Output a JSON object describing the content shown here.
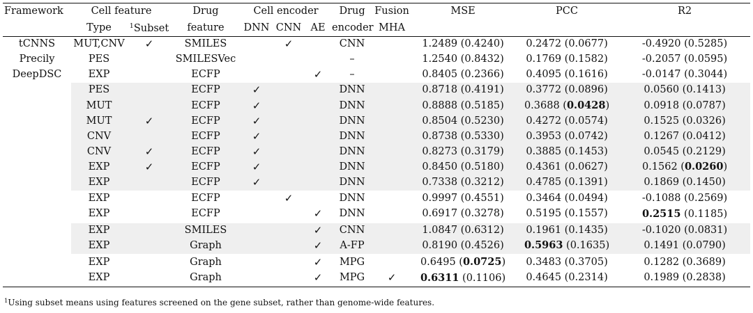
{
  "header": {
    "framework": "Framework",
    "cell_feature": "Cell feature",
    "drug_top": "Drug",
    "cell_encoder": "Cell encoder",
    "drug_encoder_top": "Drug",
    "fusion_top": "Fusion",
    "mse": "MSE",
    "pcc": "PCC",
    "r2": "R2",
    "type": "Type",
    "subset_sup": "1",
    "subset": "Subset",
    "drug_feature": "feature",
    "dnn": "DNN",
    "cnn": "CNN",
    "ae": "AE",
    "drug_encoder": "encoder",
    "mha": "MHA"
  },
  "check_glyph": "✓",
  "rows": [
    {
      "framework": "tCNNS",
      "type": "MUT,CNV",
      "subset": "✓",
      "drug": "SMILES",
      "dnn": "",
      "cnn": "✓",
      "ae": "",
      "enc": "CNN",
      "mha": "",
      "mse": "1.2489 (0.4240)",
      "pcc": "0.2472 (0.0677)",
      "r2": "-0.4920 (0.5285)"
    },
    {
      "framework": "Precily",
      "type": "PES",
      "subset": "",
      "drug": "SMILESVec",
      "dnn": "",
      "cnn": "",
      "ae": "",
      "enc": "–",
      "mha": "",
      "mse": "1.2540 (0.8432)",
      "pcc": "0.1769 (0.1582)",
      "r2": "-0.2057 (0.0595)"
    },
    {
      "framework": "DeepDSC",
      "type": "EXP",
      "subset": "",
      "drug": "ECFP",
      "dnn": "",
      "cnn": "",
      "ae": "✓",
      "enc": "–",
      "mha": "",
      "mse": "0.8405 (0.2366)",
      "pcc": "0.4095 (0.1616)",
      "r2": "-0.0147 (0.3044)"
    },
    {
      "framework": "",
      "type": "PES",
      "subset": "",
      "drug": "ECFP",
      "dnn": "✓",
      "cnn": "",
      "ae": "",
      "enc": "DNN",
      "mha": "",
      "mse": "0.8718 (0.4191)",
      "pcc": "0.3772 (0.0896)",
      "r2": "0.0560 (0.1413)"
    },
    {
      "framework": "",
      "type": "MUT",
      "subset": "",
      "drug": "ECFP",
      "dnn": "✓",
      "cnn": "",
      "ae": "",
      "enc": "DNN",
      "mha": "",
      "mse": "0.8888 (0.5185)",
      "pcc_a": "0.3688 (",
      "pcc_b": "0.0428",
      "pcc_c": ")",
      "r2": "0.0918 (0.0787)"
    },
    {
      "framework": "",
      "type": "MUT",
      "subset": "✓",
      "drug": "ECFP",
      "dnn": "✓",
      "cnn": "",
      "ae": "",
      "enc": "DNN",
      "mha": "",
      "mse": "0.8504 (0.5230)",
      "pcc": "0.4272 (0.0574)",
      "r2": "0.1525 (0.0326)"
    },
    {
      "framework": "",
      "type": "CNV",
      "subset": "",
      "drug": "ECFP",
      "dnn": "✓",
      "cnn": "",
      "ae": "",
      "enc": "DNN",
      "mha": "",
      "mse": "0.8738 (0.5330)",
      "pcc": "0.3953 (0.0742)",
      "r2": "0.1267 (0.0412)"
    },
    {
      "framework": "",
      "type": "CNV",
      "subset": "✓",
      "drug": "ECFP",
      "dnn": "✓",
      "cnn": "",
      "ae": "",
      "enc": "DNN",
      "mha": "",
      "mse": "0.8273 (0.3179)",
      "pcc": "0.3885 (0.1453)",
      "r2": "0.0545 (0.2129)"
    },
    {
      "framework": "",
      "type": "EXP",
      "subset": "✓",
      "drug": "ECFP",
      "dnn": "✓",
      "cnn": "",
      "ae": "",
      "enc": "DNN",
      "mha": "",
      "mse": "0.8450 (0.5180)",
      "pcc": "0.4361 (0.0627)",
      "r2_a": "0.1562 (",
      "r2_b": "0.0260",
      "r2_c": ")"
    },
    {
      "framework": "",
      "type": "EXP",
      "subset": "",
      "drug": "ECFP",
      "dnn": "✓",
      "cnn": "",
      "ae": "",
      "enc": "DNN",
      "mha": "",
      "mse": "0.7338 (0.3212)",
      "pcc": "0.4785 (0.1391)",
      "r2": "0.1869 (0.1450)"
    },
    {
      "framework": "",
      "type": "EXP",
      "subset": "",
      "drug": "ECFP",
      "dnn": "",
      "cnn": "✓",
      "ae": "",
      "enc": "DNN",
      "mha": "",
      "mse": "0.9997 (0.4551)",
      "pcc": "0.3464 (0.0494)",
      "r2": "-0.1088 (0.2569)"
    },
    {
      "framework": "",
      "type": "EXP",
      "subset": "",
      "drug": "ECFP",
      "dnn": "",
      "cnn": "",
      "ae": "✓",
      "enc": "DNN",
      "mha": "",
      "mse": "0.6917 (0.3278)",
      "pcc": "0.5195 (0.1557)",
      "r2_a": "",
      "r2_b": "0.2515",
      "r2_c": " (0.1185)"
    },
    {
      "framework": "",
      "type": "EXP",
      "subset": "",
      "drug": "SMILES",
      "dnn": "",
      "cnn": "",
      "ae": "✓",
      "enc": "CNN",
      "mha": "",
      "mse": "1.0847 (0.6312)",
      "pcc": "0.1961 (0.1435)",
      "r2": "-0.1020 (0.0831)"
    },
    {
      "framework": "",
      "type": "EXP",
      "subset": "",
      "drug": "Graph",
      "dnn": "",
      "cnn": "",
      "ae": "✓",
      "enc": "A-FP",
      "mha": "",
      "mse": "0.8190 (0.4526)",
      "pcc_a": "",
      "pcc_b": "0.5963",
      "pcc_c": " (0.1635)",
      "r2": "0.1491 (0.0790)"
    },
    {
      "framework": "",
      "type": "EXP",
      "subset": "",
      "drug": "Graph",
      "dnn": "",
      "cnn": "",
      "ae": "✓",
      "enc": "MPG",
      "mha": "",
      "mse_a": "0.6495 (",
      "mse_b": "0.0725",
      "mse_c": ")",
      "pcc": "0.3483 (0.3705)",
      "r2": "0.1282 (0.3689)"
    },
    {
      "framework": "",
      "type": "EXP",
      "subset": "",
      "drug": "Graph",
      "dnn": "",
      "cnn": "",
      "ae": "✓",
      "enc": "MPG",
      "mha": "✓",
      "mse_a": "",
      "mse_b": "0.6311",
      "mse_c": " (0.1106)",
      "pcc": "0.4645 (0.2314)",
      "r2": "0.1989 (0.2838)"
    }
  ],
  "footnote": {
    "sup": "1",
    "text": "Using subset means using features screened on the gene subset, rather than genome-wide features."
  }
}
